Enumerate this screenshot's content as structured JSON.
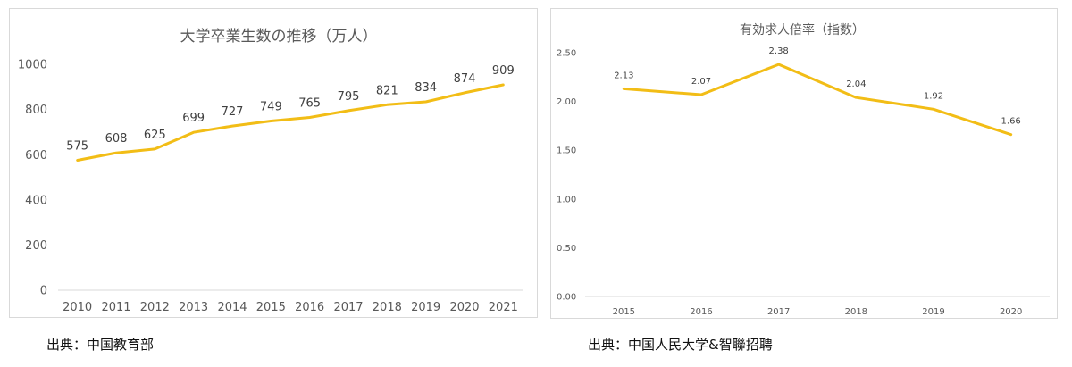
{
  "chart_data": [
    {
      "type": "line",
      "title": "大学卒業生数の推移（万人）",
      "xlabel": "",
      "ylabel": "",
      "categories": [
        "2010",
        "2011",
        "2012",
        "2013",
        "2014",
        "2015",
        "2016",
        "2017",
        "2018",
        "2019",
        "2020",
        "2021"
      ],
      "values": [
        575,
        608,
        625,
        699,
        727,
        749,
        765,
        795,
        821,
        834,
        874,
        909
      ],
      "data_labels": [
        "575",
        "608",
        "625",
        "699",
        "727",
        "749",
        "765",
        "795",
        "821",
        "834",
        "874",
        "909"
      ],
      "ylim": [
        0,
        1000
      ],
      "yticks": [
        "0",
        "200",
        "400",
        "600",
        "800",
        "1000"
      ],
      "grid": false,
      "line_color": "#f2bd16"
    },
    {
      "type": "line",
      "title": "有効求人倍率（指数）",
      "xlabel": "",
      "ylabel": "",
      "categories": [
        "2015",
        "2016",
        "2017",
        "2018",
        "2019",
        "2020"
      ],
      "values": [
        2.13,
        2.07,
        2.38,
        2.04,
        1.92,
        1.66
      ],
      "data_labels": [
        "2.13",
        "2.07",
        "2.38",
        "2.04",
        "1.92",
        "1.66"
      ],
      "ylim": [
        0,
        2.5
      ],
      "yticks": [
        "0.00",
        "0.50",
        "1.00",
        "1.50",
        "2.00",
        "2.50"
      ],
      "grid": false,
      "line_color": "#f2bd16"
    }
  ],
  "sources": {
    "left": "出典：中国教育部",
    "right": "出典：中国人民大学&智聯招聘"
  }
}
